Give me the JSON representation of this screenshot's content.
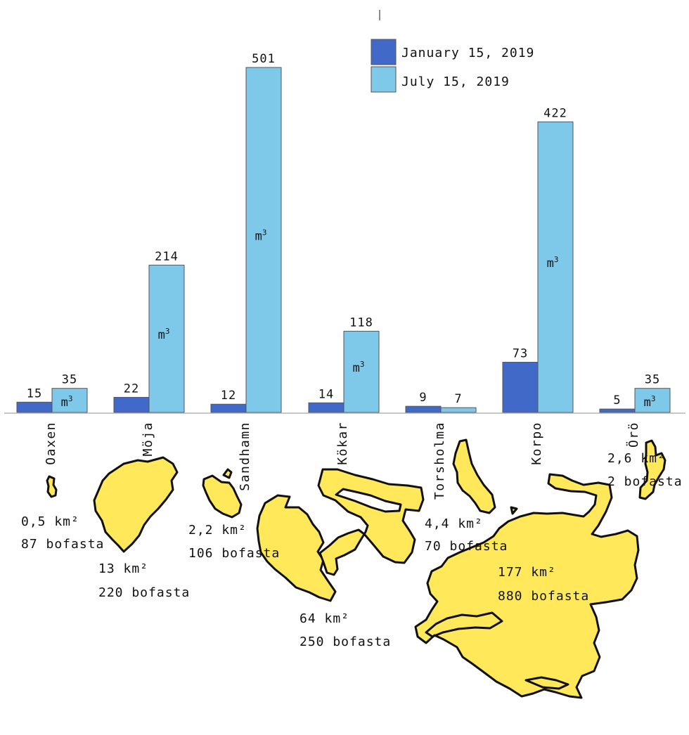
{
  "chart_data": {
    "type": "bar",
    "title": "",
    "xlabel": "",
    "ylabel": "",
    "ylim": [
      0,
      520
    ],
    "unit_label": "m",
    "unit_exponent": "3",
    "categories": [
      "Oaxen",
      "Möja",
      "Sandhamn",
      "Kökar",
      "Torsholma",
      "Korpo",
      "Örö"
    ],
    "series": [
      {
        "name": "January 15, 2019",
        "color": "#4169C8",
        "values": [
          15,
          22,
          12,
          14,
          9,
          73,
          5
        ]
      },
      {
        "name": "July 15, 2019",
        "color": "#7EC8EA",
        "values": [
          35,
          214,
          501,
          118,
          7,
          422,
          35
        ]
      }
    ],
    "unit_marked_bars": [
      true,
      true,
      true,
      true,
      false,
      true,
      true
    ],
    "legend_position": "top-right",
    "grid": false
  },
  "islands": [
    {
      "name": "Oaxen",
      "area": "0,5 km²",
      "residents": "87 bofasta"
    },
    {
      "name": "Möja",
      "area": "13 km²",
      "residents": "220 bofasta"
    },
    {
      "name": "Sandhamn",
      "area": "2,2 km²",
      "residents": "106 bofasta"
    },
    {
      "name": "Kökar",
      "area": "64 km²",
      "residents": "250 bofasta"
    },
    {
      "name": "Torsholma",
      "area": "4,4 km²",
      "residents": "70 bofasta"
    },
    {
      "name": "Korpo",
      "area": "177 km²",
      "residents": "880 bofasta"
    },
    {
      "name": "Örö",
      "area": "2,6 km²",
      "residents": "2 bofasta"
    }
  ],
  "colors": {
    "island_fill": "#FFE95A",
    "outline": "#111111"
  }
}
